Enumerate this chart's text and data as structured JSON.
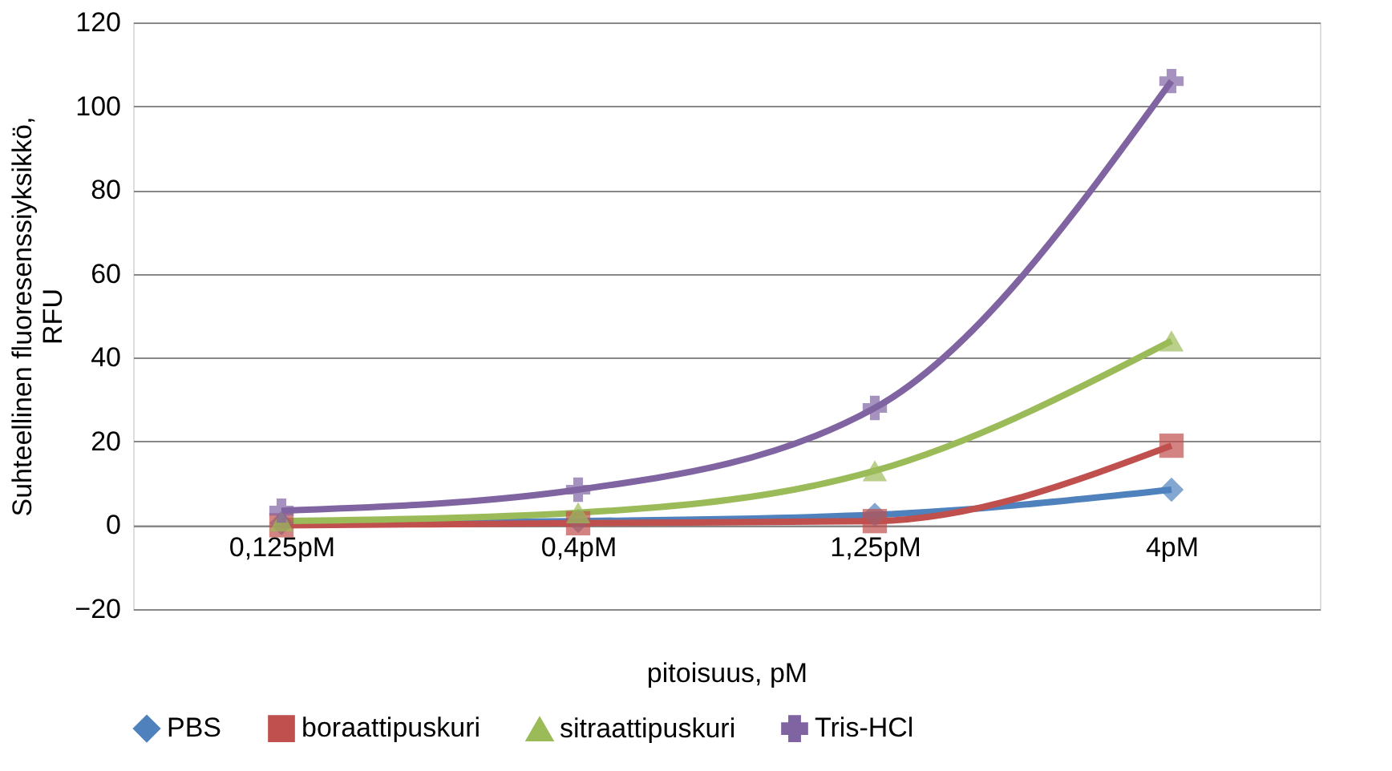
{
  "chart_data": {
    "type": "line",
    "xlabel": "pitoisuus, pM",
    "ylabel": "Suhteellinen fluoresenssiyksikkö, RFU",
    "categories": [
      "0,125pM",
      "0,4pM",
      "1,25pM",
      "4pM"
    ],
    "series": [
      {
        "name": "PBS",
        "color": "#4f81bd",
        "marker": "diamond",
        "values": [
          0.5,
          1.0,
          2.5,
          8.5
        ]
      },
      {
        "name": "boraattipuskuri",
        "color": "#c0504d",
        "marker": "square",
        "values": [
          0,
          0.5,
          1,
          19
        ]
      },
      {
        "name": "sitraattipuskuri",
        "color": "#9bbb59",
        "marker": "triangle",
        "values": [
          1,
          3,
          13,
          44
        ]
      },
      {
        "name": "Tris-HCl",
        "color": "#8064a2",
        "marker": "cross",
        "values": [
          3.5,
          8.5,
          28,
          106
        ]
      }
    ],
    "ylim": [
      -20,
      120
    ],
    "yticks": [
      -20,
      0,
      20,
      40,
      60,
      80,
      100,
      120
    ],
    "grid": "y",
    "legend": "bottom"
  }
}
